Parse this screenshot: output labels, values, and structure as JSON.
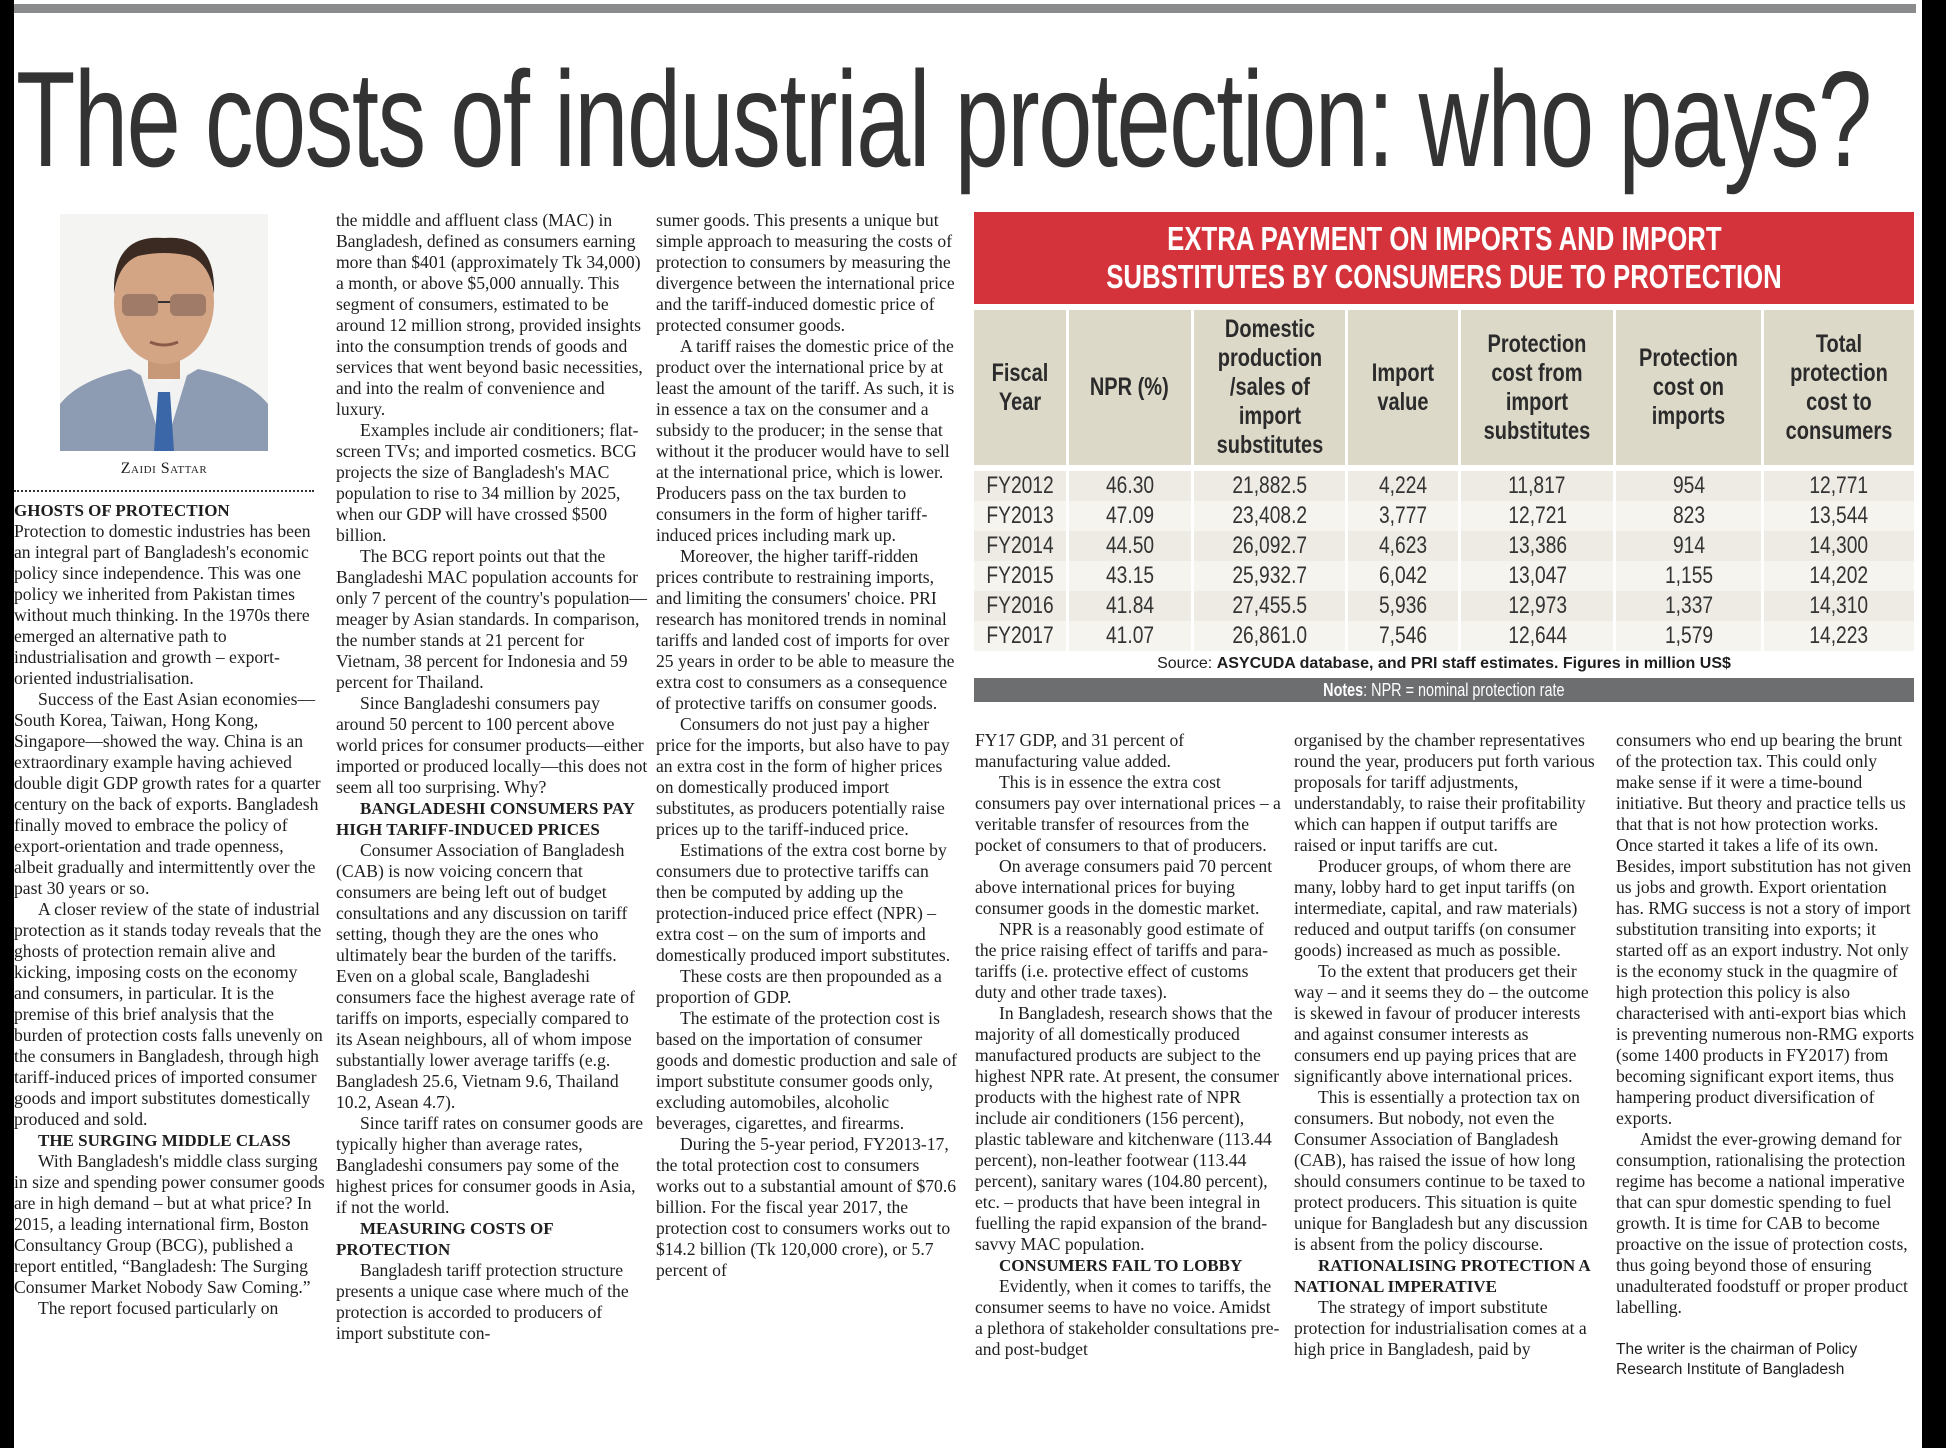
{
  "headline": "The costs of industrial protection: who pays?",
  "author": "Zaidi Sattar",
  "columns": [
    [
      {
        "type": "h",
        "indent": false,
        "text": "GHOSTS OF PROTECTION"
      },
      {
        "type": "p",
        "indent": false,
        "text": "Protection to domestic industries has been an integral part of Bangladesh's economic policy since independence. This was one policy we inherited from Pakistan times without much thinking. In the 1970s there emerged an alternative path to industrialisation and growth – export-oriented industrialisation."
      },
      {
        "type": "p",
        "indent": true,
        "text": "Success of the East Asian economies—South Korea, Taiwan, Hong Kong, Singapore—showed the way. China is an extraordinary example having achieved double digit GDP growth rates for a quarter century on the back of exports. Bangladesh finally moved to embrace the policy of export-orientation and trade openness, albeit gradually and intermittently over the past 30 years or so."
      },
      {
        "type": "p",
        "indent": true,
        "text": "A closer review of the state of industrial protection as it stands today reveals that the ghosts of protection remain alive and kicking, imposing costs on the economy and consumers, in particular. It is the premise of this brief analysis that the burden of protection costs falls unevenly on the consumers in Bangladesh, through high tariff-induced prices of imported consumer goods and import substitutes domestically produced and sold."
      },
      {
        "type": "h",
        "indent": true,
        "text": "THE SURGING MIDDLE CLASS"
      },
      {
        "type": "p",
        "indent": true,
        "text": "With Bangladesh's middle class surging in size and spending power consumer goods are in high demand – but at what price? In 2015, a leading international firm, Boston Consultancy Group (BCG), published a report entitled, “Bangladesh: The Surging Consumer Market Nobody Saw Coming.”"
      },
      {
        "type": "p",
        "indent": true,
        "text": "The report focused particularly on"
      }
    ],
    [
      {
        "type": "p",
        "indent": false,
        "text": "the middle and affluent class (MAC) in Bangladesh, defined as consumers earning more than $401 (approximately Tk 34,000) a month, or above $5,000 annually. This segment of consumers, estimated to be around 12 million strong, provided insights into the consumption trends of goods and services that went beyond basic necessities, and into the realm of convenience and luxury."
      },
      {
        "type": "p",
        "indent": true,
        "text": "Examples include air conditioners; flat-screen TVs; and imported cosmetics. BCG projects the size of Bangladesh's MAC population to rise to 34 million by 2025, when our GDP will have crossed $500 billion."
      },
      {
        "type": "p",
        "indent": true,
        "text": "The BCG report points out that the Bangladeshi MAC population accounts for only 7 percent of the country's population—meager by Asian standards. In comparison, the number stands at 21 percent for Vietnam, 38 percent for Indonesia and 59 percent for Thailand."
      },
      {
        "type": "p",
        "indent": true,
        "text": "Since Bangladeshi consumers pay around 50 percent to 100 percent above world prices for consumer products—either imported or produced locally—this does not seem all too surprising. Why?"
      },
      {
        "type": "h",
        "indent": true,
        "text": "BANGLADESHI CONSUMERS PAY HIGH TARIFF-INDUCED PRICES"
      },
      {
        "type": "p",
        "indent": true,
        "text": "Consumer Association of Bangladesh (CAB) is now voicing concern that consumers are being left out of budget consultations and any discussion on tariff setting, though they are the ones who ultimately bear the burden of the tariffs. Even on a global scale, Bangladeshi consumers face the highest average rate of tariffs on imports, especially compared to its Asean neighbours, all of whom impose substantially lower average tariffs (e.g. Bangladesh 25.6, Vietnam 9.6, Thailand 10.2, Asean 4.7)."
      },
      {
        "type": "p",
        "indent": true,
        "text": "Since tariff rates on consumer goods are typically higher than average rates, Bangladeshi consumers pay some of the highest prices for consumer goods in Asia, if not the world."
      },
      {
        "type": "h",
        "indent": true,
        "text": "MEASURING COSTS OF PROTECTION"
      },
      {
        "type": "p",
        "indent": true,
        "text": "Bangladesh tariff protection structure presents a unique case where much of the protection is accorded to producers of import substitute con-"
      }
    ],
    [
      {
        "type": "p",
        "indent": false,
        "text": "sumer goods. This presents a unique but simple approach to measuring the costs of protection to consumers by measuring the divergence between the international price and the tariff-induced domestic price of protected consumer goods."
      },
      {
        "type": "p",
        "indent": true,
        "text": "A tariff raises the domestic price of the product over the international price by at least the amount of the tariff. As such, it is in essence a tax on the consumer and a subsidy to the producer; in the sense that without it the producer would have to sell at the international price, which is lower. Producers pass on the tax burden to consumers in the form of higher tariff-induced prices including mark up."
      },
      {
        "type": "p",
        "indent": true,
        "text": "Moreover, the higher tariff-ridden prices contribute to restraining imports, and limiting the consumers' choice. PRI research has monitored trends in nominal tariffs and landed cost of imports for over 25 years in order to be able to measure the extra cost to consumers as a consequence of protective tariffs on consumer goods."
      },
      {
        "type": "p",
        "indent": true,
        "text": "Consumers do not just pay a higher price for the imports, but also have to pay an extra cost in the form of higher prices on domestically produced import substitutes, as producers potentially raise prices up to the tariff-induced price."
      },
      {
        "type": "p",
        "indent": true,
        "text": "Estimations of the extra cost borne by consumers due to protective tariffs can then be computed by adding up the protection-induced price effect (NPR) – extra cost – on the sum of imports and domestically produced import substitutes."
      },
      {
        "type": "p",
        "indent": true,
        "text": "These costs are then propounded as a proportion of GDP."
      },
      {
        "type": "p",
        "indent": true,
        "text": "The estimate of the protection cost is based on the importation of consumer goods and domestic production and sale of import substitute consumer goods only, excluding automobiles, alcoholic beverages, cigarettes, and firearms."
      },
      {
        "type": "p",
        "indent": true,
        "text": "During the 5-year period, FY2013-17, the total protection cost to consumers works out to a substantial amount of $70.6 billion. For the fiscal year 2017, the protection cost to consumers works out to $14.2 billion (Tk 120,000 crore), or 5.7 percent of"
      }
    ],
    [
      {
        "type": "p",
        "indent": false,
        "text": "FY17 GDP, and 31 percent of manufacturing value added."
      },
      {
        "type": "p",
        "indent": true,
        "text": "This is in essence the extra cost consumers pay over international prices – a veritable transfer of resources from the pocket of consumers to that of producers."
      },
      {
        "type": "p",
        "indent": true,
        "text": "On average consumers paid 70 percent above international prices for buying consumer goods in the domestic market."
      },
      {
        "type": "p",
        "indent": true,
        "text": "NPR is a reasonably good estimate of the price raising effect of tariffs and para-tariffs (i.e. protective effect of customs duty and other trade taxes)."
      },
      {
        "type": "p",
        "indent": true,
        "text": "In Bangladesh, research shows that the majority of all domestically produced manufactured products are subject to the highest NPR rate. At present, the consumer products with the highest rate of NPR include air conditioners (156 percent), plastic tableware and kitchenware (113.44 percent), non-leather footwear (113.44 percent), sanitary wares (104.80 percent), etc. – products that have been integral in fuelling the rapid expansion of the brand-savvy MAC population."
      },
      {
        "type": "h",
        "indent": true,
        "text": "CONSUMERS FAIL TO LOBBY"
      },
      {
        "type": "p",
        "indent": true,
        "text": "Evidently, when it comes to tariffs, the consumer seems to have no voice. Amidst a plethora of stakeholder consultations pre- and post-budget"
      }
    ],
    [
      {
        "type": "p",
        "indent": false,
        "text": "organised by the chamber representatives round the year, producers put forth various proposals for tariff adjustments, understandably, to raise their profitability which can happen if output tariffs are raised or input tariffs are cut."
      },
      {
        "type": "p",
        "indent": true,
        "text": "Producer groups, of whom there are many, lobby hard to get input tariffs (on intermediate, capital, and raw materials) reduced and output tariffs (on consumer goods) increased as much as possible."
      },
      {
        "type": "p",
        "indent": true,
        "text": "To the extent that producers get their way – and it seems they do – the outcome is skewed in favour of producer interests and against consumer interests as consumers end up paying prices that are significantly above international prices."
      },
      {
        "type": "p",
        "indent": true,
        "text": "This is essentially a protection tax on consumers. But nobody, not even the Consumer Association of Bangladesh (CAB), has raised the issue of how long should consumers continue to be taxed to protect producers. This situation is quite unique for Bangladesh but any discussion is absent from the policy discourse."
      },
      {
        "type": "h",
        "indent": true,
        "text": "RATIONALISING PROTECTION A NATIONAL IMPERATIVE"
      },
      {
        "type": "p",
        "indent": true,
        "text": "The strategy of import substitute protection for industrialisation comes at a high price in Bangladesh, paid by"
      }
    ],
    [
      {
        "type": "p",
        "indent": false,
        "text": "consumers who end up bearing the brunt of the protection tax. This could only make sense if it were a time-bound initiative. But theory and practice tells us that that is not how protection works. Once started it takes a life of its own. Besides, import substitution has not given us jobs and growth. Export orientation has. RMG success is not a story of import substitution transiting into exports; it started off as an export industry. Not only is the economy stuck in the quagmire of high protection this policy is also characterised with anti-export bias which is preventing numerous non-RMG exports (some 1400 products in FY2017) from becoming significant export items, thus hampering product diversification of exports."
      },
      {
        "type": "p",
        "indent": true,
        "text": "Amidst the ever-growing demand for consumption, rationalising the protection regime has become a national imperative that can spur domestic spending to fuel growth. It is time for CAB to become proactive on the issue of protection costs, thus going beyond those of ensuring unadulterated foodstuff or proper product labelling."
      },
      {
        "type": "w",
        "indent": false,
        "text": "The writer is the chairman of Policy Research Institute of Bangladesh"
      }
    ]
  ],
  "table": {
    "title_line1": "EXTRA PAYMENT ON IMPORTS AND IMPORT",
    "title_line2": "SUBSTITUTES BY CONSUMERS DUE TO PROTECTION",
    "headers": [
      "Fiscal Year",
      "NPR (%)",
      "Domestic production /sales of import substitutes",
      "Import value",
      "Protection cost from import substitutes",
      "Protection cost on imports",
      "Total protection cost to consumers"
    ],
    "rows": [
      [
        "FY2012",
        "46.30",
        "21,882.5",
        "4,224",
        "11,817",
        "954",
        "12,771"
      ],
      [
        "FY2013",
        "47.09",
        "23,408.2",
        "3,777",
        "12,721",
        "823",
        "13,544"
      ],
      [
        "FY2014",
        "44.50",
        "26,092.7",
        "4,623",
        "13,386",
        "914",
        "14,300"
      ],
      [
        "FY2015",
        "43.15",
        "25,932.7",
        "6,042",
        "13,047",
        "1,155",
        "14,202"
      ],
      [
        "FY2016",
        "41.84",
        "27,455.5",
        "5,936",
        "12,973",
        "1,337",
        "14,310"
      ],
      [
        "FY2017",
        "41.07",
        "26,861.0",
        "7,546",
        "12,644",
        "1,579",
        "14,223"
      ]
    ],
    "source_label": "Source:",
    "source_text": "ASYCUDA database, and PRI staff estimates. Figures in million US$",
    "notes_label": "Notes",
    "notes_text": ": NPR = nominal protection rate",
    "colors": {
      "title_bg": "#d5333b",
      "header_bg": "#dcd9c9",
      "notes_bg": "#6d6e70"
    }
  }
}
